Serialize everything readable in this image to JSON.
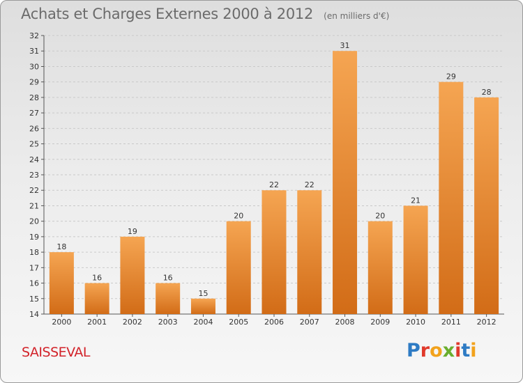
{
  "header": {
    "title": "Achats et Charges Externes 2000 à 2012",
    "subtitle": "(en milliers d'€)"
  },
  "footer": {
    "commune": "SAISSEVAL",
    "logo_text": "Proxiti"
  },
  "colors": {
    "bar_light": "#f5a552",
    "bar_dark": "#d26c17",
    "commune": "#d2232a",
    "logo": [
      "#2e7bc4",
      "#e0392b",
      "#f2a21c",
      "#6aae2e",
      "#e0392b",
      "#2e7bc4",
      "#f2a21c"
    ]
  },
  "chart_data": {
    "type": "bar",
    "title": "Achats et Charges Externes 2000 à 2012",
    "subtitle": "(en milliers d'€)",
    "categories": [
      "2000",
      "2001",
      "2002",
      "2003",
      "2004",
      "2005",
      "2006",
      "2007",
      "2008",
      "2009",
      "2010",
      "2011",
      "2012"
    ],
    "values": [
      18,
      16,
      19,
      16,
      15,
      20,
      22,
      22,
      31,
      20,
      21,
      29,
      28
    ],
    "ylim": [
      14,
      32
    ],
    "yticks": [
      14,
      15,
      16,
      17,
      18,
      19,
      20,
      21,
      22,
      23,
      24,
      25,
      26,
      27,
      28,
      29,
      30,
      31,
      32
    ],
    "grid": "horizontal dashed",
    "data_labels": true
  }
}
